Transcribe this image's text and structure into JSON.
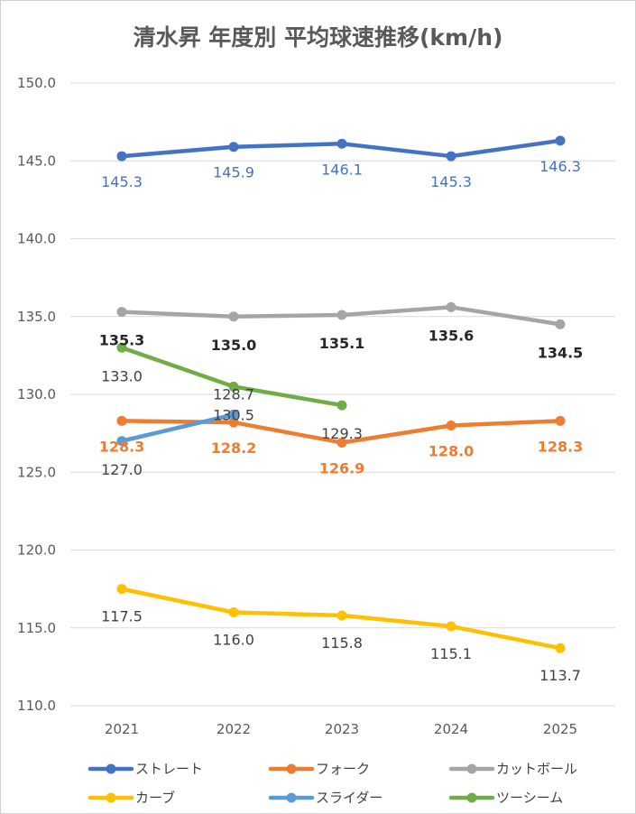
{
  "chart_data": {
    "type": "line",
    "title": "清水昇 年度別 平均球速推移(km/h)",
    "x": [
      "2021",
      "2022",
      "2023",
      "2024",
      "2025"
    ],
    "y_ticks": [
      "110.0",
      "115.0",
      "120.0",
      "125.0",
      "130.0",
      "135.0",
      "140.0",
      "145.0",
      "150.0"
    ],
    "ylim": [
      110,
      150
    ],
    "grid": true,
    "legend_position": "bottom",
    "series": [
      {
        "name": "ストレート",
        "color": "#4472C4",
        "values": [
          145.3,
          145.9,
          146.1,
          145.3,
          146.3
        ],
        "labels": [
          "145.3",
          "145.9",
          "146.1",
          "145.3",
          "146.3"
        ],
        "label_color": "#4472C4",
        "label_bold": false
      },
      {
        "name": "フォーク",
        "color": "#ED7D31",
        "values": [
          128.3,
          128.2,
          126.9,
          128.0,
          128.3
        ],
        "labels": [
          "128.3",
          "128.2",
          "126.9",
          "128.0",
          "128.3"
        ],
        "label_color": "#ED7D31",
        "label_bold": true
      },
      {
        "name": "カットボール",
        "color": "#A5A5A5",
        "values": [
          135.3,
          135.0,
          135.1,
          135.6,
          134.5
        ],
        "labels": [
          "135.3",
          "135.0",
          "135.1",
          "135.6",
          "134.5"
        ],
        "label_color": "#262626",
        "label_bold": true
      },
      {
        "name": "カーブ",
        "color": "#FFC000",
        "values": [
          117.5,
          116.0,
          115.8,
          115.1,
          113.7
        ],
        "labels": [
          "117.5",
          "116.0",
          "115.8",
          "115.1",
          "113.7"
        ],
        "label_color": "#404040",
        "label_bold": false
      },
      {
        "name": "スライダー",
        "color": "#5B9BD5",
        "values": [
          127.0,
          128.7,
          null,
          null,
          null
        ],
        "labels": [
          "127.0",
          "128.7",
          null,
          null,
          null
        ],
        "label_color": "#404040",
        "label_bold": false
      },
      {
        "name": "ツーシーム",
        "color": "#70AD47",
        "values": [
          133.0,
          130.5,
          129.3,
          null,
          null
        ],
        "labels": [
          "133.0",
          "130.5",
          "129.3",
          null,
          null
        ],
        "label_color": "#404040",
        "label_bold": false
      }
    ]
  }
}
